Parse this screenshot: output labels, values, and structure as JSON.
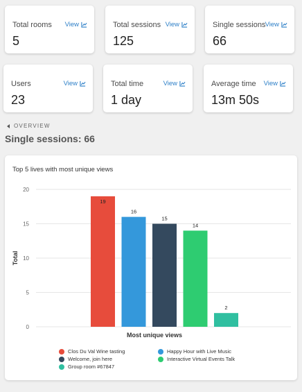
{
  "stats": [
    {
      "label": "Total rooms",
      "value": "5",
      "view": "View"
    },
    {
      "label": "Total sessions",
      "value": "125",
      "view": "View"
    },
    {
      "label": "Single sessions",
      "value": "66",
      "view": "View"
    },
    {
      "label": "Users",
      "value": "23",
      "view": "View"
    },
    {
      "label": "Total time",
      "value": "1 day",
      "view": "View"
    },
    {
      "label": "Average time",
      "value": "13m 50s",
      "view": "View"
    }
  ],
  "back_label": "OVERVIEW",
  "heading": "Single sessions: 66",
  "chart_data": {
    "type": "bar",
    "title": "Top 5 lives with most unique views",
    "xlabel": "Most unique views",
    "ylabel": "Total",
    "ylim": [
      0,
      20
    ],
    "yticks": [
      0,
      5,
      10,
      15,
      20
    ],
    "grid": true,
    "legend_position": "bottom",
    "series": [
      {
        "name": "Clos Du Val Wine tasting",
        "value": 19,
        "color": "#e74c3c"
      },
      {
        "name": "Happy Hour with Live Music",
        "value": 16,
        "color": "#3498db"
      },
      {
        "name": "Welcome, join here",
        "value": 15,
        "color": "#34495e"
      },
      {
        "name": "Interactive Virtual Events Talk",
        "value": 14,
        "color": "#2ecc71"
      },
      {
        "name": "Group room #67847",
        "value": 2,
        "color": "#30bfa0"
      }
    ]
  }
}
